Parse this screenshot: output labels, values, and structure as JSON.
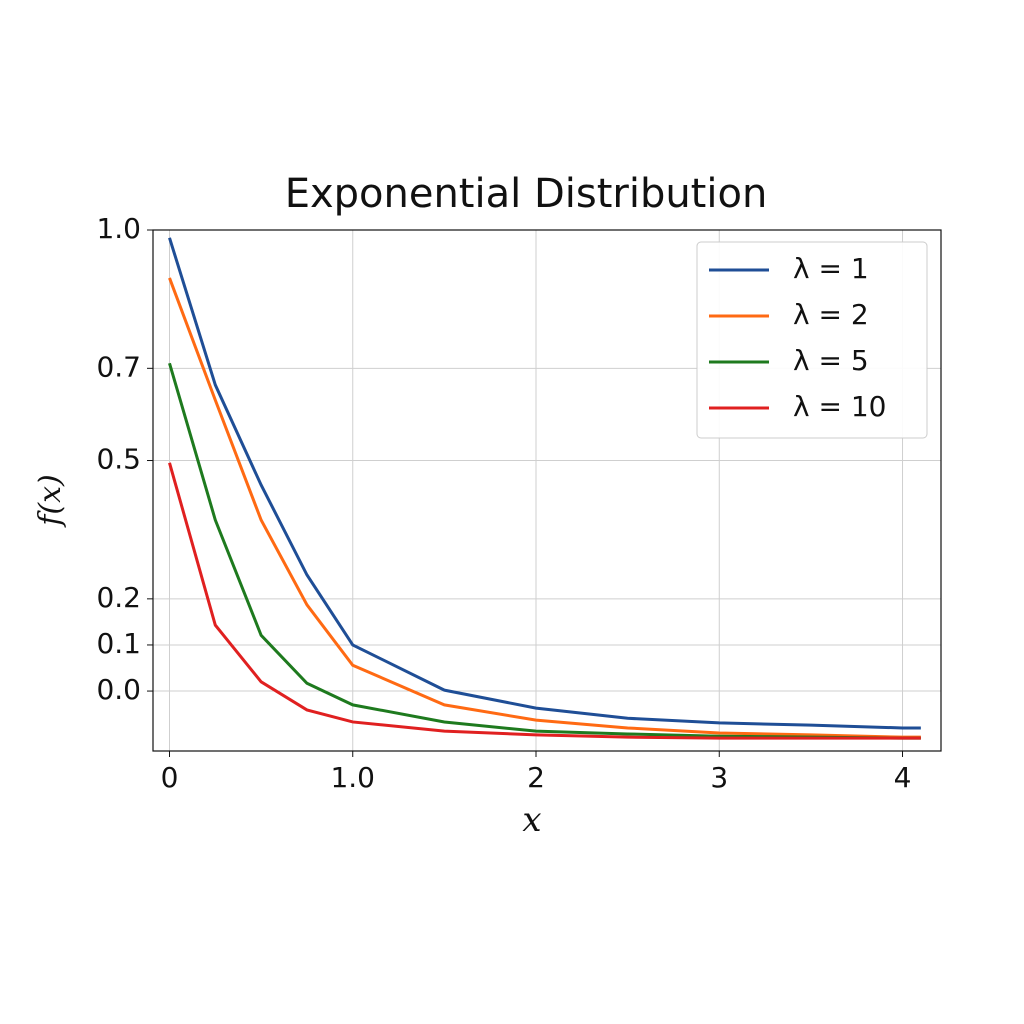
{
  "chart_data": {
    "type": "line",
    "title": "Exponential Distribution",
    "x_label": "x",
    "y_label": "f(x)",
    "x": [
      0,
      0.25,
      0.5,
      0.75,
      1,
      1.5,
      2,
      2.5,
      3,
      3.5,
      4,
      4.1
    ],
    "series": [
      {
        "name": "λ = 1",
        "color": "#1f4e96",
        "values": [
          0.983,
          0.664,
          0.447,
          0.252,
          0.1,
          0.002,
          -0.037,
          -0.059,
          -0.069,
          -0.074,
          -0.08,
          -0.08
        ]
      },
      {
        "name": "λ = 2",
        "color": "#ff6a13",
        "values": [
          0.896,
          0.631,
          0.371,
          0.187,
          0.056,
          -0.03,
          -0.063,
          -0.08,
          -0.091,
          -0.095,
          -0.1,
          -0.1
        ]
      },
      {
        "name": "λ = 5",
        "color": "#1e7a1e",
        "values": [
          0.711,
          0.371,
          0.121,
          0.017,
          -0.03,
          -0.067,
          -0.087,
          -0.093,
          -0.098,
          -0.1,
          -0.102,
          -0.102
        ]
      },
      {
        "name": "λ = 10",
        "color": "#e02020",
        "values": [
          0.495,
          0.143,
          0.02,
          -0.041,
          -0.067,
          -0.087,
          -0.095,
          -0.1,
          -0.102,
          -0.102,
          -0.102,
          -0.102
        ]
      }
    ],
    "xlim": [
      -0.09,
      4.21
    ],
    "ylim": [
      -0.13,
      1.0
    ],
    "xticks": [
      0,
      {
        "value": 1,
        "label": "1.0"
      },
      2,
      3,
      4
    ],
    "yticks": [
      {
        "value": 1,
        "label": "1.0"
      },
      0.7,
      0.5,
      0.2,
      0.1,
      {
        "value": 0,
        "label": "0.0"
      }
    ],
    "grid": true,
    "legend": "upper right"
  }
}
